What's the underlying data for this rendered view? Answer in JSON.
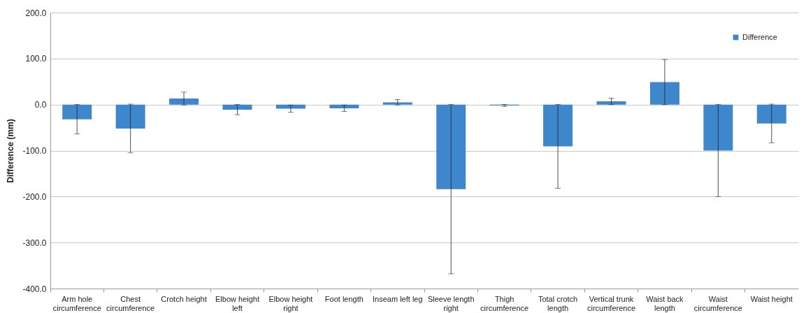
{
  "chart_data": {
    "type": "bar",
    "ylabel": "Difference (mm)",
    "categories": [
      "Arm hole circumference",
      "Chest circumference",
      "Crotch height",
      "Elbow height left",
      "Elbow height right",
      "Foot length",
      "Inseam left leg",
      "Sleeve length right",
      "Thigh circumference",
      "Total crotch length",
      "Vertical trunk circumference",
      "Waist back length",
      "Waist circumference",
      "Waist height"
    ],
    "series": [
      {
        "name": "Difference",
        "color": "#3f87cd",
        "values": [
          -32,
          -52,
          13,
          -11,
          -9,
          -8,
          5,
          -184,
          -2,
          -91,
          7,
          49,
          -100,
          -41
        ],
        "errors": [
          32,
          53,
          14,
          11,
          8,
          7,
          6,
          184,
          2,
          91,
          7,
          49,
          100,
          42
        ]
      }
    ],
    "ylim": [
      -400,
      200
    ],
    "yticks": [
      {
        "value": -400,
        "label": "-400.0"
      },
      {
        "value": -300,
        "label": "-300.0"
      },
      {
        "value": -200,
        "label": "-200.0"
      },
      {
        "value": -100,
        "label": "-100.0"
      },
      {
        "value": 0,
        "label": "0.0"
      },
      {
        "value": 100,
        "label": "100.0"
      },
      {
        "value": 200,
        "label": "200.0"
      }
    ],
    "grid": "y",
    "legend": "top right"
  }
}
